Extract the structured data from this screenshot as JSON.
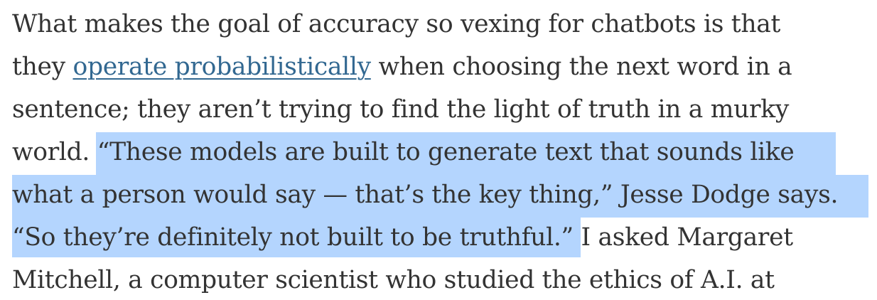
{
  "article": {
    "lines": [
      {
        "text": "What makes the goal of accuracy so vexing for chatbots is that"
      },
      {
        "pre": "they ",
        "link": "operate probabilistically",
        "post": " when choosing the next word in a"
      },
      {
        "text": "sentence; they aren’t trying to find the light of truth in a murky"
      },
      {
        "pre": "world. ",
        "highlight": "“These models are built to generate text that sounds like"
      },
      {
        "highlight": "what a person would say — that’s the key thing,” Jesse Dodge says."
      },
      {
        "highlight": "“So they’re definitely not built to be truthful.”",
        "post": " I asked Margaret"
      },
      {
        "text": "Mitchell, a computer scientist who studied the ethics of A.I. at"
      }
    ]
  }
}
